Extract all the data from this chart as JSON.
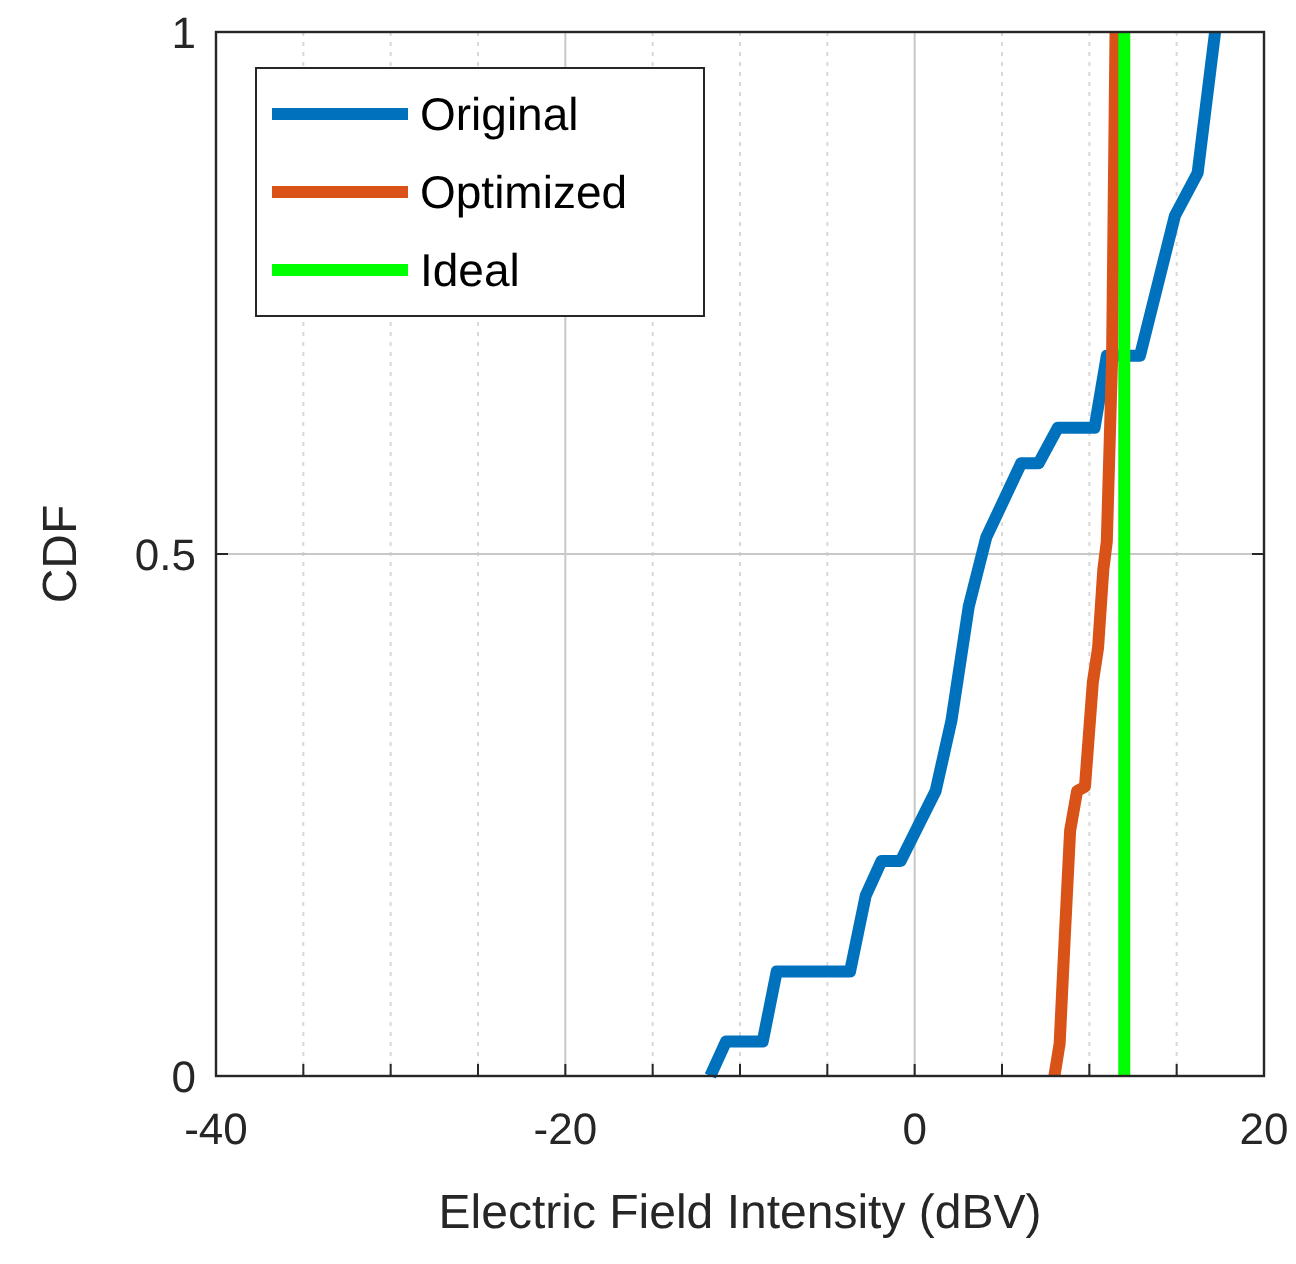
{
  "chart_data": {
    "type": "line",
    "xlabel": "Electric Field Intensity (dBV)",
    "ylabel": "CDF",
    "xlim": [
      -40,
      20
    ],
    "xticks": [
      -40,
      {
        "value": -35,
        "label": null
      },
      {
        "value": -30,
        "label": null
      },
      {
        "value": -25,
        "label": null
      },
      -20,
      {
        "value": -15,
        "label": null
      },
      {
        "value": -10,
        "label": null
      },
      {
        "value": -5,
        "label": null
      },
      0,
      {
        "value": 5,
        "label": null
      },
      {
        "value": 10,
        "label": null
      },
      {
        "value": 15,
        "label": null
      },
      20
    ],
    "ylim": [
      0,
      1
    ],
    "yticks": [
      0,
      0.5,
      1
    ],
    "grid": true,
    "legend": "top left",
    "line_style": "solid",
    "series": [
      {
        "name": "Original",
        "color": "#0072bd",
        "x": [
          -11.7,
          -10.8,
          -8.7,
          -7.9,
          -3.7,
          -2.8,
          -1.9,
          -0.8,
          1.2,
          2.1,
          3.1,
          4.1,
          6.1,
          7.1,
          8.2,
          10.3,
          11.0,
          12.9,
          14.9,
          16.2,
          17.2
        ],
        "values": [
          0,
          0.033,
          0.033,
          0.1,
          0.1,
          0.173,
          0.206,
          0.206,
          0.273,
          0.34,
          0.45,
          0.516,
          0.587,
          0.587,
          0.621,
          0.621,
          0.69,
          0.69,
          0.824,
          0.865,
          1
        ]
      },
      {
        "name": "Optimized",
        "color": "#d95319",
        "x": [
          8.0,
          8.3,
          8.6,
          8.9,
          9.3,
          9.75,
          10.2,
          10.5,
          10.8,
          11.0,
          11.3,
          11.5
        ],
        "values": [
          0,
          0.031,
          0.135,
          0.235,
          0.273,
          0.277,
          0.377,
          0.41,
          0.485,
          0.512,
          0.685,
          1
        ]
      },
      {
        "name": "Ideal",
        "color": "#00ff00",
        "x": [
          12,
          12
        ],
        "values": [
          0,
          1
        ]
      }
    ]
  }
}
